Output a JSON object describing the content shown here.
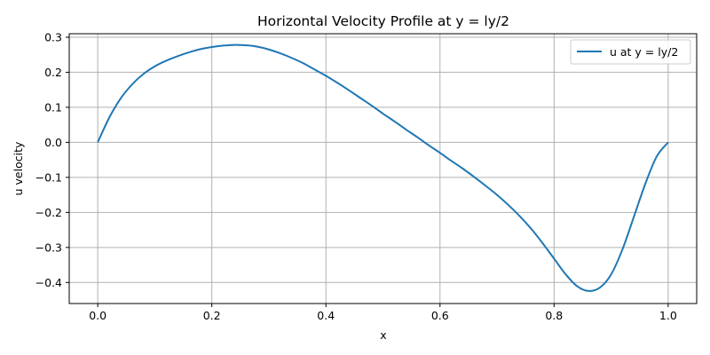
{
  "chart_data": {
    "type": "line",
    "title": "Horizontal Velocity Profile at y = ly/2",
    "xlabel": "x",
    "ylabel": "u velocity",
    "xlim": [
      -0.05,
      1.05
    ],
    "ylim": [
      -0.46,
      0.31
    ],
    "xticks": [
      0.0,
      0.2,
      0.4,
      0.6,
      0.8,
      1.0
    ],
    "xtick_labels": [
      "0.0",
      "0.2",
      "0.4",
      "0.6",
      "0.8",
      "1.0"
    ],
    "yticks": [
      -0.4,
      -0.3,
      -0.2,
      -0.1,
      0.0,
      0.1,
      0.2,
      0.3
    ],
    "ytick_labels": [
      "−0.4",
      "−0.3",
      "−0.2",
      "−0.1",
      "0.0",
      "0.1",
      "0.2",
      "0.3"
    ],
    "grid": true,
    "legend_position": "top-right",
    "series": [
      {
        "name": "u at y = ly/2",
        "color": "#1f77b4",
        "x": [
          0.0,
          0.02,
          0.04,
          0.06,
          0.08,
          0.1,
          0.12,
          0.14,
          0.16,
          0.18,
          0.2,
          0.22,
          0.24,
          0.26,
          0.28,
          0.3,
          0.32,
          0.34,
          0.36,
          0.38,
          0.4,
          0.42,
          0.44,
          0.46,
          0.48,
          0.5,
          0.52,
          0.54,
          0.56,
          0.58,
          0.6,
          0.62,
          0.64,
          0.66,
          0.68,
          0.7,
          0.72,
          0.74,
          0.76,
          0.78,
          0.8,
          0.82,
          0.84,
          0.86,
          0.88,
          0.9,
          0.92,
          0.94,
          0.96,
          0.98,
          1.0
        ],
        "y": [
          0.0,
          0.07,
          0.125,
          0.165,
          0.195,
          0.217,
          0.233,
          0.246,
          0.257,
          0.266,
          0.272,
          0.276,
          0.278,
          0.277,
          0.273,
          0.265,
          0.254,
          0.241,
          0.226,
          0.208,
          0.19,
          0.17,
          0.149,
          0.127,
          0.105,
          0.082,
          0.06,
          0.037,
          0.015,
          -0.008,
          -0.03,
          -0.053,
          -0.075,
          -0.099,
          -0.124,
          -0.15,
          -0.179,
          -0.211,
          -0.247,
          -0.288,
          -0.332,
          -0.376,
          -0.41,
          -0.424,
          -0.415,
          -0.377,
          -0.305,
          -0.212,
          -0.118,
          -0.04,
          0.0
        ]
      }
    ]
  }
}
